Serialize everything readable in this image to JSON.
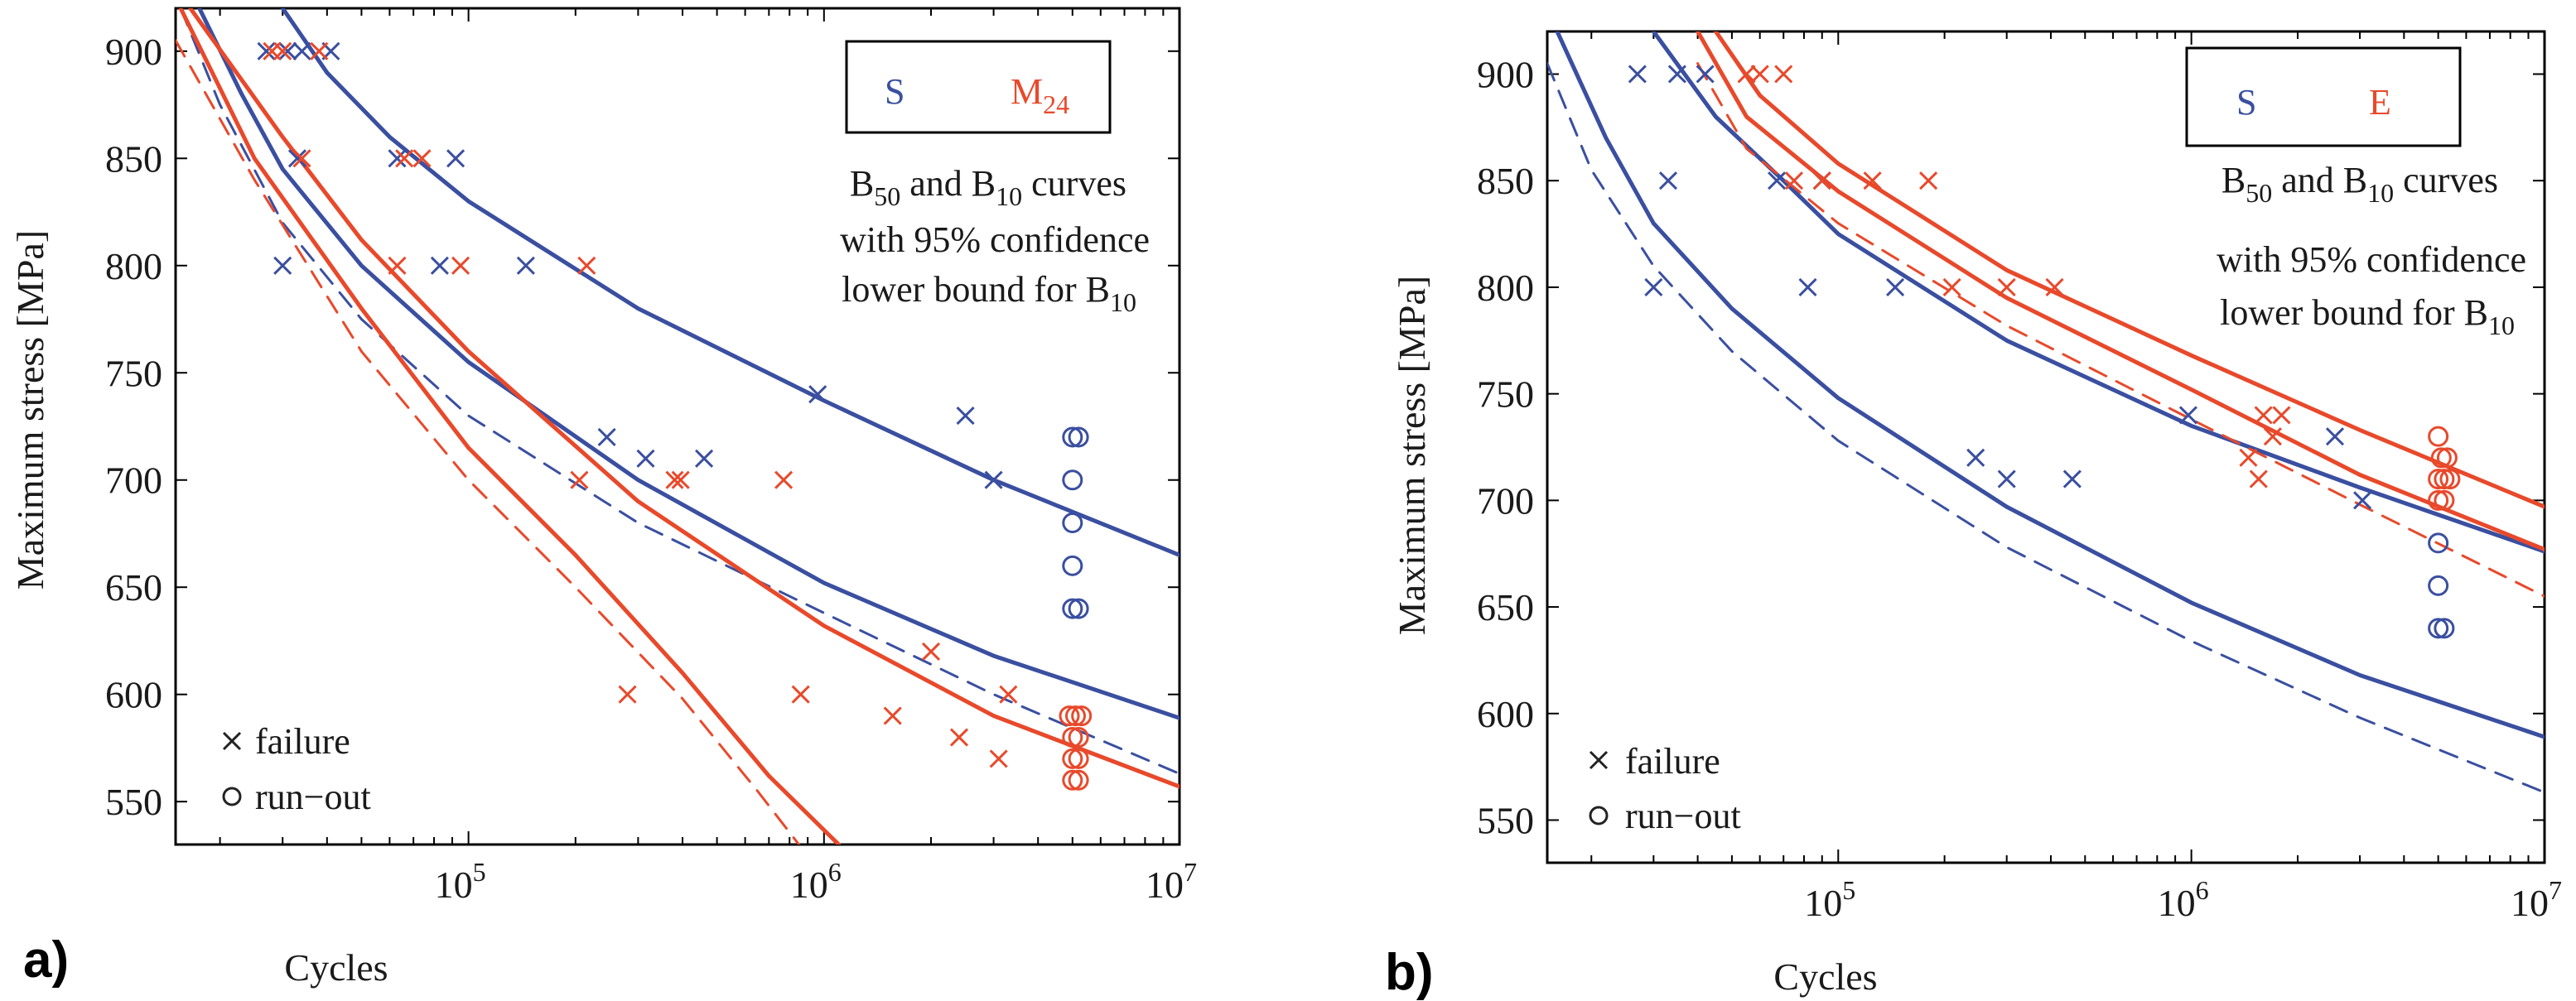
{
  "chart_data": [
    {
      "type": "scatter",
      "panel_label": "a)",
      "xlabel": "Cycles",
      "ylabel": "Maximum stress [MPa]",
      "xscale": "log",
      "xlim": [
        15000,
        10000000
      ],
      "ylim": [
        530,
        920
      ],
      "xticks": [
        {
          "value": 100000,
          "base": "10",
          "exp": "5"
        },
        {
          "value": 1000000,
          "base": "10",
          "exp": "6"
        },
        {
          "value": 10000000,
          "base": "10",
          "exp": "7"
        }
      ],
      "yticks": [
        550,
        600,
        650,
        700,
        750,
        800,
        850,
        900
      ],
      "legend_box": {
        "left": "S",
        "right_main": "M",
        "right_sub": "24",
        "left_color": "#3a4fa0",
        "right_color": "#e8492b"
      },
      "annotation": {
        "line1_pre": "B",
        "line1_sub1": "50",
        "line1_mid": " and B",
        "line1_sub2": "10",
        "line1_post": " curves",
        "line2": "with 95% confidence",
        "line3_pre": "lower bound for B",
        "line3_sub": "10"
      },
      "marker_key": {
        "failure": "failure",
        "runout": "run−out"
      },
      "series": [
        {
          "name": "S",
          "color": "#3a4fa0",
          "failures": [
            [
              27000,
              900
            ],
            [
              31000,
              900
            ],
            [
              34000,
              900
            ],
            [
              41000,
              900
            ],
            [
              30000,
              800
            ],
            [
              33000,
              850
            ],
            [
              63000,
              850
            ],
            [
              92000,
              850
            ],
            [
              83000,
              800
            ],
            [
              145000,
              800
            ],
            [
              245000,
              720
            ],
            [
              315000,
              710
            ],
            [
              460000,
              710
            ],
            [
              960000,
              740
            ],
            [
              2500000,
              730
            ],
            [
              3000000,
              700
            ]
          ],
          "runouts": [
            [
              5000000,
              720
            ],
            [
              5200000,
              720
            ],
            [
              5000000,
              700
            ],
            [
              5000000,
              680
            ],
            [
              5000000,
              660
            ],
            [
              5000000,
              640
            ],
            [
              5200000,
              640
            ]
          ],
          "curves": [
            {
              "kind": "solid",
              "points": [
                [
                  17500,
                  920
                ],
                [
                  23000,
                  880
                ],
                [
                  30000,
                  845
                ],
                [
                  50000,
                  800
                ],
                [
                  100000,
                  755
                ],
                [
                  300000,
                  700
                ],
                [
                  1000000,
                  652
                ],
                [
                  3000000,
                  618
                ],
                [
                  10000000,
                  589
                ]
              ]
            },
            {
              "kind": "solid",
              "points": [
                [
                  30000,
                  920
                ],
                [
                  40000,
                  890
                ],
                [
                  60000,
                  860
                ],
                [
                  100000,
                  830
                ],
                [
                  300000,
                  780
                ],
                [
                  1000000,
                  737
                ],
                [
                  3000000,
                  700
                ],
                [
                  10000000,
                  665
                ]
              ]
            },
            {
              "kind": "dashed",
              "points": [
                [
                  15500,
                  920
                ],
                [
                  20000,
                  875
                ],
                [
                  30000,
                  820
                ],
                [
                  50000,
                  775
                ],
                [
                  100000,
                  730
                ],
                [
                  300000,
                  680
                ],
                [
                  1000000,
                  638
                ],
                [
                  3000000,
                  600
                ],
                [
                  10000000,
                  563
                ]
              ]
            }
          ]
        },
        {
          "name": "M24",
          "color": "#e8492b",
          "failures": [
            [
              28000,
              900
            ],
            [
              30000,
              900
            ],
            [
              38000,
              900
            ],
            [
              34000,
              850
            ],
            [
              66000,
              850
            ],
            [
              74000,
              850
            ],
            [
              63000,
              800
            ],
            [
              95000,
              800
            ],
            [
              215000,
              800
            ],
            [
              380000,
              700
            ],
            [
              395000,
              700
            ],
            [
              770000,
              700
            ],
            [
              205000,
              700
            ],
            [
              280000,
              600
            ],
            [
              860000,
              600
            ],
            [
              1560000,
              590
            ],
            [
              2000000,
              620
            ],
            [
              2400000,
              580
            ],
            [
              3300000,
              600
            ],
            [
              3100000,
              570
            ]
          ],
          "runouts": [
            [
              4900000,
              590
            ],
            [
              5100000,
              590
            ],
            [
              5300000,
              590
            ],
            [
              5000000,
              580
            ],
            [
              5200000,
              580
            ],
            [
              5000000,
              570
            ],
            [
              5200000,
              570
            ],
            [
              5000000,
              560
            ],
            [
              5200000,
              560
            ]
          ],
          "curves": [
            {
              "kind": "solid",
              "points": [
                [
                  16500,
                  920
                ],
                [
                  30000,
                  860
                ],
                [
                  50000,
                  812
                ],
                [
                  100000,
                  760
                ],
                [
                  300000,
                  690
                ],
                [
                  1000000,
                  632
                ],
                [
                  3000000,
                  590
                ],
                [
                  10000000,
                  557
                ]
              ]
            },
            {
              "kind": "solid",
              "points": [
                [
                  15500,
                  920
                ],
                [
                  25000,
                  850
                ],
                [
                  50000,
                  780
                ],
                [
                  100000,
                  715
                ],
                [
                  200000,
                  665
                ],
                [
                  400000,
                  610
                ],
                [
                  700000,
                  562
                ],
                [
                  1100000,
                  530
                ]
              ]
            },
            {
              "kind": "dashed",
              "points": [
                [
                  15000,
                  905
                ],
                [
                  25000,
                  840
                ],
                [
                  50000,
                  760
                ],
                [
                  100000,
                  700
                ],
                [
                  200000,
                  650
                ],
                [
                  400000,
                  598
                ],
                [
                  650000,
                  555
                ],
                [
                  850000,
                  530
                ]
              ]
            }
          ]
        }
      ]
    },
    {
      "type": "scatter",
      "panel_label": "b)",
      "xlabel": "Cycles",
      "ylabel": "Maximum stress [MPa]",
      "xscale": "log",
      "xlim": [
        15000,
        10000000
      ],
      "ylim": [
        530,
        920
      ],
      "xticks": [
        {
          "value": 100000,
          "base": "10",
          "exp": "5"
        },
        {
          "value": 1000000,
          "base": "10",
          "exp": "6"
        },
        {
          "value": 10000000,
          "base": "10",
          "exp": "7"
        }
      ],
      "yticks": [
        550,
        600,
        650,
        700,
        750,
        800,
        850,
        900
      ],
      "legend_box": {
        "left": "S",
        "right_main": "E",
        "right_sub": "",
        "left_color": "#3a4fa0",
        "right_color": "#e8492b"
      },
      "annotation": {
        "line1_pre": "B",
        "line1_sub1": "50",
        "line1_mid": " and B",
        "line1_sub2": "10",
        "line1_post": " curves",
        "line2": "with 95% confidence",
        "line3_pre": "lower bound for B",
        "line3_sub": "10"
      },
      "marker_key": {
        "failure": "failure",
        "runout": "run−out"
      },
      "series": [
        {
          "name": "S",
          "color": "#3a4fa0",
          "failures": [
            [
              27000,
              900
            ],
            [
              35000,
              900
            ],
            [
              42000,
              900
            ],
            [
              33000,
              850
            ],
            [
              67000,
              850
            ],
            [
              90000,
              850
            ],
            [
              30000,
              800
            ],
            [
              82000,
              800
            ],
            [
              145000,
              800
            ],
            [
              980000,
              740
            ],
            [
              245000,
              720
            ],
            [
              300000,
              710
            ],
            [
              460000,
              710
            ],
            [
              2550000,
              730
            ],
            [
              3050000,
              700
            ]
          ],
          "runouts": [
            [
              5000000,
              680
            ],
            [
              5000000,
              660
            ],
            [
              5000000,
              640
            ],
            [
              5200000,
              640
            ]
          ],
          "curves": [
            {
              "kind": "solid",
              "points": [
                [
                  16000,
                  920
                ],
                [
                  22000,
                  870
                ],
                [
                  30000,
                  830
                ],
                [
                  50000,
                  790
                ],
                [
                  100000,
                  748
                ],
                [
                  300000,
                  697
                ],
                [
                  1000000,
                  652
                ],
                [
                  3000000,
                  618
                ],
                [
                  10000000,
                  589
                ]
              ]
            },
            {
              "kind": "solid",
              "points": [
                [
                  30000,
                  920
                ],
                [
                  45000,
                  880
                ],
                [
                  70000,
                  850
                ],
                [
                  100000,
                  825
                ],
                [
                  300000,
                  775
                ],
                [
                  1000000,
                  735
                ],
                [
                  3000000,
                  706
                ],
                [
                  10000000,
                  676
                ]
              ]
            },
            {
              "kind": "dashed",
              "points": [
                [
                  15000,
                  905
                ],
                [
                  20000,
                  855
                ],
                [
                  30000,
                  810
                ],
                [
                  50000,
                  770
                ],
                [
                  100000,
                  728
                ],
                [
                  300000,
                  678
                ],
                [
                  1000000,
                  634
                ],
                [
                  3000000,
                  598
                ],
                [
                  10000000,
                  563
                ]
              ]
            }
          ]
        },
        {
          "name": "E",
          "color": "#e8492b",
          "failures": [
            [
              55000,
              900
            ],
            [
              60000,
              900
            ],
            [
              70000,
              900
            ],
            [
              75000,
              850
            ],
            [
              90000,
              850
            ],
            [
              125000,
              850
            ],
            [
              180000,
              850
            ],
            [
              210000,
              800
            ],
            [
              300000,
              800
            ],
            [
              410000,
              800
            ],
            [
              1450000,
              720
            ],
            [
              1600000,
              740
            ],
            [
              1700000,
              730
            ],
            [
              1800000,
              740
            ],
            [
              1550000,
              710
            ]
          ],
          "runouts": [
            [
              5000000,
              730
            ],
            [
              5100000,
              720
            ],
            [
              5300000,
              720
            ],
            [
              5000000,
              710
            ],
            [
              5200000,
              710
            ],
            [
              5400000,
              710
            ],
            [
              5000000,
              700
            ],
            [
              5200000,
              700
            ]
          ],
          "curves": [
            {
              "kind": "solid",
              "points": [
                [
                  45000,
                  920
                ],
                [
                  60000,
                  890
                ],
                [
                  100000,
                  858
                ],
                [
                  300000,
                  808
                ],
                [
                  1000000,
                  768
                ],
                [
                  3000000,
                  733
                ],
                [
                  10000000,
                  697
                ]
              ]
            },
            {
              "kind": "solid",
              "points": [
                [
                  40000,
                  920
                ],
                [
                  55000,
                  880
                ],
                [
                  100000,
                  845
                ],
                [
                  300000,
                  795
                ],
                [
                  1000000,
                  752
                ],
                [
                  3000000,
                  712
                ],
                [
                  10000000,
                  677
                ]
              ]
            },
            {
              "kind": "dashed",
              "points": [
                [
                  40000,
                  905
                ],
                [
                  55000,
                  865
                ],
                [
                  100000,
                  830
                ],
                [
                  300000,
                  782
                ],
                [
                  1000000,
                  738
                ],
                [
                  3000000,
                  698
                ],
                [
                  10000000,
                  655
                ]
              ]
            }
          ]
        }
      ]
    }
  ]
}
